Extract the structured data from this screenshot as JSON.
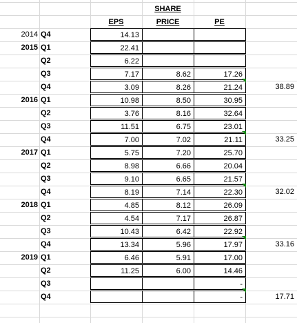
{
  "headers": {
    "eps": "EPS",
    "share_price": [
      "SHARE",
      "PRICE"
    ],
    "pe": "PE"
  },
  "rows": [
    {
      "year": "2014",
      "year_bold": false,
      "quarter": "Q4",
      "eps": "14.13",
      "price": "",
      "pe": "",
      "extra": ""
    },
    {
      "year": "2015",
      "year_bold": true,
      "quarter": "Q1",
      "eps": "22.41",
      "price": "",
      "pe": "",
      "extra": ""
    },
    {
      "year": "",
      "year_bold": false,
      "quarter": "Q2",
      "eps": "6.22",
      "price": "",
      "pe": "",
      "extra": ""
    },
    {
      "year": "",
      "year_bold": false,
      "quarter": "Q3",
      "eps": "7.17",
      "price": "8.62",
      "pe": "17.26",
      "extra": ""
    },
    {
      "year": "",
      "year_bold": false,
      "quarter": "Q4",
      "eps": "3.09",
      "price": "8.26",
      "pe": "21.24",
      "extra": "38.89"
    },
    {
      "year": "2016",
      "year_bold": true,
      "quarter": "Q1",
      "eps": "10.98",
      "price": "8.50",
      "pe": "30.95",
      "extra": ""
    },
    {
      "year": "",
      "year_bold": false,
      "quarter": "Q2",
      "eps": "3.76",
      "price": "8.16",
      "pe": "32.64",
      "extra": ""
    },
    {
      "year": "",
      "year_bold": false,
      "quarter": "Q3",
      "eps": "11.51",
      "price": "6.75",
      "pe": "23.01",
      "extra": ""
    },
    {
      "year": "",
      "year_bold": false,
      "quarter": "Q4",
      "eps": "7.00",
      "price": "7.02",
      "pe": "21.11",
      "extra": "33.25"
    },
    {
      "year": "2017",
      "year_bold": true,
      "quarter": "Q1",
      "eps": "5.75",
      "price": "7.20",
      "pe": "25.70",
      "extra": ""
    },
    {
      "year": "",
      "year_bold": false,
      "quarter": "Q2",
      "eps": "8.98",
      "price": "6.66",
      "pe": "20.04",
      "extra": ""
    },
    {
      "year": "",
      "year_bold": false,
      "quarter": "Q3",
      "eps": "9.10",
      "price": "6.65",
      "pe": "21.57",
      "extra": ""
    },
    {
      "year": "",
      "year_bold": false,
      "quarter": "Q4",
      "eps": "8.19",
      "price": "7.14",
      "pe": "22.30",
      "extra": "32.02"
    },
    {
      "year": "2018",
      "year_bold": true,
      "quarter": "Q1",
      "eps": "4.85",
      "price": "8.12",
      "pe": "26.09",
      "extra": ""
    },
    {
      "year": "",
      "year_bold": false,
      "quarter": "Q2",
      "eps": "4.54",
      "price": "7.17",
      "pe": "26.87",
      "extra": ""
    },
    {
      "year": "",
      "year_bold": false,
      "quarter": "Q3",
      "eps": "10.43",
      "price": "6.42",
      "pe": "22.92",
      "extra": ""
    },
    {
      "year": "",
      "year_bold": false,
      "quarter": "Q4",
      "eps": "13.34",
      "price": "5.96",
      "pe": "17.97",
      "extra": "33.16"
    },
    {
      "year": "2019",
      "year_bold": true,
      "quarter": "Q1",
      "eps": "6.46",
      "price": "5.91",
      "pe": "17.00",
      "extra": ""
    },
    {
      "year": "",
      "year_bold": false,
      "quarter": "Q2",
      "eps": "11.25",
      "price": "6.00",
      "pe": "14.46",
      "extra": ""
    },
    {
      "year": "",
      "year_bold": false,
      "quarter": "Q3",
      "eps": "",
      "price": "",
      "pe": "-",
      "extra": ""
    },
    {
      "year": "",
      "year_bold": false,
      "quarter": "Q4",
      "eps": "",
      "price": "",
      "pe": "-",
      "extra": "17.71"
    }
  ],
  "error_indicator_color": "#1a8a1a",
  "gridline_color": "#d9d9d9"
}
